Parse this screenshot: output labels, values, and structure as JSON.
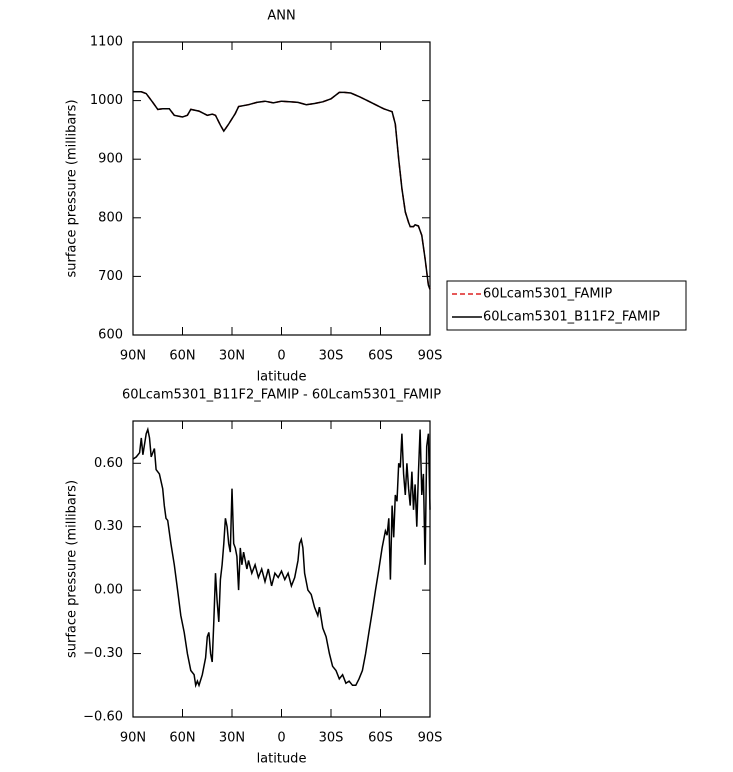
{
  "chart_data": [
    {
      "type": "line",
      "title": "ANN",
      "xlabel": "latitude",
      "ylabel": "surface pressure (millibars)",
      "x": [
        90,
        85,
        82,
        78,
        75,
        72,
        68,
        65,
        60,
        57,
        55,
        50,
        45,
        42,
        40,
        37,
        35,
        32,
        28,
        26,
        20,
        15,
        10,
        5,
        0,
        -5,
        -10,
        -15,
        -20,
        -25,
        -30,
        -35,
        -38,
        -42,
        -47,
        -52,
        -57,
        -62,
        -65,
        -67,
        -69,
        -71,
        -73,
        -75,
        -77,
        -78,
        -80,
        -81,
        -83,
        -85,
        -87,
        -89,
        -90
      ],
      "series": [
        {
          "name": "60Lcam5301_FAMIP",
          "color": "#dd2222",
          "linestyle": "dashed",
          "values": [
            1015,
            1015,
            1012,
            997,
            985,
            986,
            986,
            975,
            972,
            975,
            985,
            982,
            975,
            977,
            975,
            958,
            948,
            960,
            978,
            990,
            993,
            997,
            999,
            996,
            999,
            998,
            997,
            993,
            995,
            998,
            1003,
            1014,
            1014,
            1013,
            1007,
            1000,
            993,
            986,
            983,
            981,
            960,
            900,
            850,
            810,
            792,
            785,
            785,
            788,
            786,
            770,
            730,
            685,
            678
          ]
        },
        {
          "name": "60Lcam5301_B11F2_FAMIP",
          "color": "#000000",
          "linestyle": "solid",
          "values": [
            1015,
            1015,
            1012,
            997,
            985,
            986,
            986,
            975,
            972,
            975,
            985,
            982,
            975,
            977,
            975,
            958,
            948,
            960,
            978,
            990,
            993,
            997,
            999,
            996,
            999,
            998,
            997,
            993,
            995,
            998,
            1003,
            1014,
            1014,
            1013,
            1007,
            1000,
            993,
            986,
            983,
            981,
            960,
            900,
            850,
            810,
            792,
            785,
            785,
            788,
            786,
            770,
            730,
            685,
            678
          ]
        }
      ],
      "xlim": [
        90,
        -90
      ],
      "xticks": [
        {
          "value": 90,
          "label": "90N"
        },
        {
          "value": 60,
          "label": "60N"
        },
        {
          "value": 30,
          "label": "30N"
        },
        0,
        {
          "value": -30,
          "label": "30S"
        },
        {
          "value": -60,
          "label": "60S"
        },
        {
          "value": -90,
          "label": "90S"
        }
      ],
      "ylim": [
        600,
        1100
      ],
      "yticks": [
        600,
        700,
        800,
        900,
        1000,
        1100
      ],
      "legend": "right"
    },
    {
      "type": "line",
      "title": "60Lcam5301_B11F2_FAMIP - 60Lcam5301_FAMIP",
      "xlabel": "latitude",
      "ylabel": "surface pressure (millibars)",
      "x": [
        90,
        88,
        86,
        85,
        84,
        82,
        81,
        80,
        79,
        77,
        76,
        74,
        72,
        71,
        70,
        69,
        67,
        65,
        63,
        61,
        59,
        57,
        55,
        53,
        52,
        51,
        50,
        48,
        46,
        45,
        44,
        43,
        42,
        41,
        40,
        39,
        38,
        37,
        36,
        35,
        34,
        33,
        32,
        31,
        30,
        29,
        28,
        27,
        26,
        25,
        24,
        23,
        21,
        20,
        18,
        16,
        14,
        12,
        10,
        8,
        6,
        4,
        2,
        0,
        -2,
        -4,
        -6,
        -8,
        -10,
        -11,
        -12,
        -13,
        -14,
        -16,
        -18,
        -20,
        -22,
        -23,
        -25,
        -27,
        -29,
        -31,
        -33,
        -35,
        -37,
        -39,
        -41,
        -43,
        -45,
        -47,
        -49,
        -51,
        -53,
        -55,
        -57,
        -59,
        -61,
        -63,
        -64,
        -65,
        -66,
        -67,
        -68,
        -69,
        -70,
        -71,
        -72,
        -73,
        -74,
        -75,
        -76,
        -77,
        -78,
        -79,
        -80,
        -81,
        -82,
        -83,
        -84,
        -85,
        -86,
        -87,
        -88,
        -89,
        -90
      ],
      "series": [
        {
          "name": "60Lcam5301_B11F2_FAMIP - 60Lcam5301_FAMIP",
          "color": "#000000",
          "linestyle": "solid",
          "values": [
            0.62,
            0.63,
            0.65,
            0.72,
            0.64,
            0.74,
            0.76,
            0.72,
            0.63,
            0.67,
            0.57,
            0.55,
            0.48,
            0.4,
            0.34,
            0.33,
            0.22,
            0.12,
            0.0,
            -0.12,
            -0.2,
            -0.3,
            -0.38,
            -0.4,
            -0.45,
            -0.43,
            -0.45,
            -0.4,
            -0.32,
            -0.22,
            -0.2,
            -0.3,
            -0.34,
            -0.15,
            0.08,
            -0.05,
            -0.15,
            0.05,
            0.12,
            0.22,
            0.34,
            0.3,
            0.22,
            0.18,
            0.48,
            0.22,
            0.2,
            0.16,
            0.0,
            0.2,
            0.12,
            0.18,
            0.1,
            0.14,
            0.08,
            0.12,
            0.06,
            0.1,
            0.04,
            0.1,
            0.02,
            0.08,
            0.06,
            0.09,
            0.05,
            0.08,
            0.02,
            0.06,
            0.14,
            0.22,
            0.24,
            0.2,
            0.08,
            0.0,
            -0.02,
            -0.08,
            -0.12,
            -0.08,
            -0.18,
            -0.22,
            -0.3,
            -0.36,
            -0.38,
            -0.42,
            -0.4,
            -0.44,
            -0.43,
            -0.45,
            -0.45,
            -0.42,
            -0.38,
            -0.3,
            -0.2,
            -0.1,
            0.0,
            0.1,
            0.2,
            0.28,
            0.26,
            0.34,
            0.05,
            0.4,
            0.25,
            0.45,
            0.42,
            0.6,
            0.58,
            0.74,
            0.55,
            0.45,
            0.6,
            0.48,
            0.4,
            0.56,
            0.38,
            0.5,
            0.3,
            0.55,
            0.76,
            0.45,
            0.55,
            0.12,
            0.68,
            0.74,
            0.38
          ]
        }
      ],
      "xlim": [
        90,
        -90
      ],
      "xticks": [
        {
          "value": 90,
          "label": "90N"
        },
        {
          "value": 60,
          "label": "60N"
        },
        {
          "value": 30,
          "label": "30N"
        },
        0,
        {
          "value": -30,
          "label": "30S"
        },
        {
          "value": -60,
          "label": "60S"
        },
        {
          "value": -90,
          "label": "90S"
        }
      ],
      "ylim": [
        -0.6,
        0.8
      ],
      "yticks": [
        {
          "value": -0.6,
          "label": "−0.60"
        },
        {
          "value": -0.3,
          "label": "−0.30"
        },
        {
          "value": 0,
          "label": "0.00"
        },
        {
          "value": 0.3,
          "label": "0.30"
        },
        {
          "value": 0.6,
          "label": "0.60"
        }
      ]
    }
  ]
}
